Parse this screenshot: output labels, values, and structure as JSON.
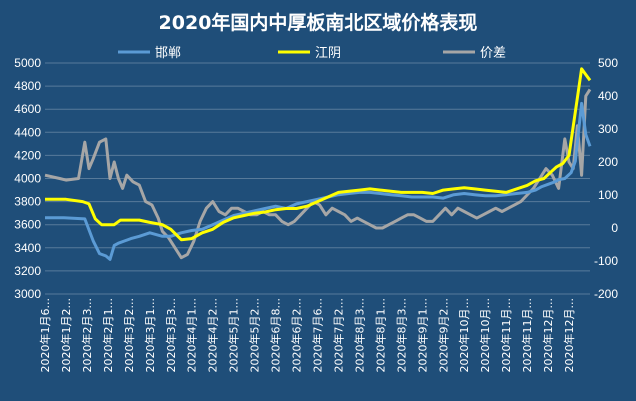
{
  "chart_data": {
    "type": "line",
    "title": "2020年国内中厚板南北区域价格表现",
    "legend_position": "top",
    "y_left": {
      "min": 3000,
      "max": 5000,
      "step": 200,
      "ticks": [
        "3000",
        "3200",
        "3400",
        "3600",
        "3800",
        "4000",
        "4200",
        "4400",
        "4600",
        "4800",
        "5000"
      ]
    },
    "y_right": {
      "min": -200,
      "max": 500,
      "step": 100,
      "ticks": [
        "-200",
        "-100",
        "0",
        "100",
        "200",
        "300",
        "400",
        "500"
      ]
    },
    "grid": true,
    "categories": [
      "2020年1月6...",
      "2020年1月2...",
      "2020年2月3...",
      "2020年2月1...",
      "2020年3月2...",
      "2020年3月1...",
      "2020年3月3...",
      "2020年4月1...",
      "2020年4月2...",
      "2020年5月1...",
      "2020年5月2...",
      "2020年6月8...",
      "2020年6月2...",
      "2020年7月6...",
      "2020年7月2...",
      "2020年8月3...",
      "2020年8月1...",
      "2020年8月3...",
      "2020年9月1...",
      "2020年9月2...",
      "2020年10月...",
      "2020年10月...",
      "2020年11月...",
      "2020年11月...",
      "2020年12月...",
      "2020年12月..."
    ],
    "series": [
      {
        "name": "邯郸",
        "axis": "left",
        "color": "#5b9bd5",
        "x": [
          0,
          0.9,
          1.9,
          2.3,
          2.6,
          2.9,
          3.1,
          3.3,
          3.5,
          3.8,
          4.1,
          4.5,
          5,
          5.6,
          6,
          6.5,
          7,
          7.5,
          8,
          8.5,
          9,
          9.5,
          10,
          10.5,
          11,
          11.5,
          12,
          12.5,
          13,
          13.5,
          14,
          14.5,
          15,
          15.5,
          16,
          16.5,
          17,
          17.5,
          18,
          18.5,
          19,
          19.5,
          20,
          20.5,
          21,
          21.5,
          22,
          22.5,
          23,
          23.4,
          23.7,
          24,
          24.3,
          24.5,
          24.8,
          25.1,
          25.3,
          25.6,
          25.8,
          26
        ],
        "y": [
          3660,
          3660,
          3650,
          3460,
          3350,
          3330,
          3300,
          3420,
          3440,
          3460,
          3480,
          3500,
          3530,
          3500,
          3500,
          3530,
          3550,
          3560,
          3600,
          3640,
          3680,
          3700,
          3720,
          3740,
          3760,
          3740,
          3780,
          3800,
          3820,
          3840,
          3860,
          3870,
          3880,
          3880,
          3870,
          3860,
          3850,
          3840,
          3840,
          3840,
          3830,
          3860,
          3870,
          3860,
          3850,
          3850,
          3860,
          3870,
          3880,
          3900,
          3930,
          3950,
          3970,
          3990,
          4000,
          4050,
          4150,
          4650,
          4380,
          4280
        ]
      },
      {
        "name": "江阴",
        "axis": "left",
        "color": "#ffff00",
        "x": [
          0,
          1,
          1.8,
          2.1,
          2.4,
          2.7,
          3,
          3.3,
          3.6,
          4,
          4.5,
          5,
          5.6,
          6,
          6.5,
          7,
          7.5,
          8,
          8.5,
          9,
          9.5,
          10,
          10.5,
          11,
          11.5,
          12,
          12.5,
          13,
          13.5,
          14,
          14.5,
          15,
          15.5,
          16,
          16.5,
          17,
          17.5,
          18,
          18.5,
          19,
          19.5,
          20,
          20.5,
          21,
          21.5,
          22,
          22.5,
          23,
          23.4,
          23.8,
          24.1,
          24.4,
          24.7,
          25,
          25.2,
          25.4,
          25.6,
          25.8,
          26
        ],
        "y": [
          3820,
          3820,
          3800,
          3780,
          3650,
          3600,
          3600,
          3600,
          3640,
          3640,
          3640,
          3620,
          3600,
          3560,
          3470,
          3480,
          3530,
          3560,
          3620,
          3660,
          3680,
          3700,
          3710,
          3730,
          3740,
          3740,
          3760,
          3800,
          3840,
          3880,
          3890,
          3900,
          3910,
          3900,
          3890,
          3880,
          3880,
          3880,
          3870,
          3900,
          3910,
          3920,
          3910,
          3900,
          3890,
          3880,
          3910,
          3940,
          3980,
          4000,
          4050,
          4100,
          4130,
          4200,
          4450,
          4700,
          4950,
          4900,
          4850
        ]
      },
      {
        "name": "价差",
        "axis": "right",
        "color": "#a6a6a6",
        "x": [
          0,
          0.7,
          1,
          1.6,
          1.9,
          2.1,
          2.3,
          2.6,
          2.9,
          3.1,
          3.3,
          3.5,
          3.7,
          3.9,
          4.2,
          4.5,
          4.8,
          5.1,
          5.4,
          5.6,
          5.9,
          6.2,
          6.5,
          6.8,
          7.1,
          7.4,
          7.7,
          8,
          8.3,
          8.6,
          8.9,
          9.2,
          9.5,
          9.8,
          10.1,
          10.4,
          10.7,
          11,
          11.3,
          11.6,
          11.9,
          12.2,
          12.5,
          12.8,
          13.1,
          13.4,
          13.7,
          14,
          14.3,
          14.6,
          14.9,
          15.2,
          15.5,
          15.8,
          16.1,
          16.4,
          16.7,
          17,
          17.3,
          17.6,
          17.9,
          18.2,
          18.5,
          18.8,
          19.1,
          19.4,
          19.7,
          20,
          20.3,
          20.6,
          20.9,
          21.2,
          21.5,
          21.8,
          22.1,
          22.4,
          22.7,
          23,
          23.3,
          23.6,
          23.9,
          24.2,
          24.5,
          24.8,
          25,
          25.2,
          25.4,
          25.6,
          25.8,
          26
        ],
        "y": [
          160,
          150,
          145,
          150,
          260,
          180,
          210,
          260,
          270,
          150,
          200,
          150,
          120,
          160,
          140,
          130,
          80,
          70,
          30,
          -10,
          -30,
          -60,
          -90,
          -80,
          -40,
          20,
          60,
          80,
          50,
          40,
          60,
          60,
          50,
          40,
          40,
          50,
          40,
          40,
          20,
          10,
          20,
          40,
          60,
          80,
          70,
          40,
          60,
          50,
          40,
          20,
          30,
          20,
          10,
          0,
          0,
          10,
          20,
          30,
          40,
          40,
          30,
          20,
          20,
          40,
          60,
          40,
          60,
          50,
          40,
          30,
          40,
          50,
          60,
          50,
          60,
          70,
          80,
          100,
          120,
          150,
          180,
          160,
          120,
          270,
          200,
          180,
          310,
          160,
          400,
          420
        ]
      }
    ]
  }
}
